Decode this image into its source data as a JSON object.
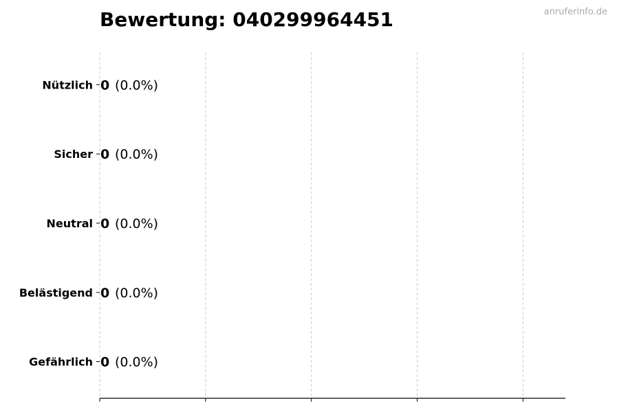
{
  "title": "Bewertung: 040299964451",
  "watermark": "anruferinfo.de",
  "chart_data": {
    "type": "bar",
    "orientation": "horizontal",
    "title": "Bewertung: 040299964451",
    "categories": [
      "Nützlich",
      "Sicher",
      "Neutral",
      "Belästigend",
      "Gefährlich"
    ],
    "values": [
      0,
      0,
      0,
      0,
      0
    ],
    "data_labels": [
      {
        "count": "0",
        "percent": "(0.0%)"
      },
      {
        "count": "0",
        "percent": "(0.0%)"
      },
      {
        "count": "0",
        "percent": "(0.0%)"
      },
      {
        "count": "0",
        "percent": "(0.0%)"
      },
      {
        "count": "0",
        "percent": "(0.0%)"
      }
    ],
    "xlabel": "",
    "ylabel": "",
    "xlim": [
      0,
      4.4
    ],
    "xticks": [
      0,
      1,
      2,
      3,
      4
    ],
    "xtick_labels_shown": false,
    "grid": "vertical dashed",
    "grid_color": "#cccccc",
    "bar_edge_color": "#000000"
  }
}
